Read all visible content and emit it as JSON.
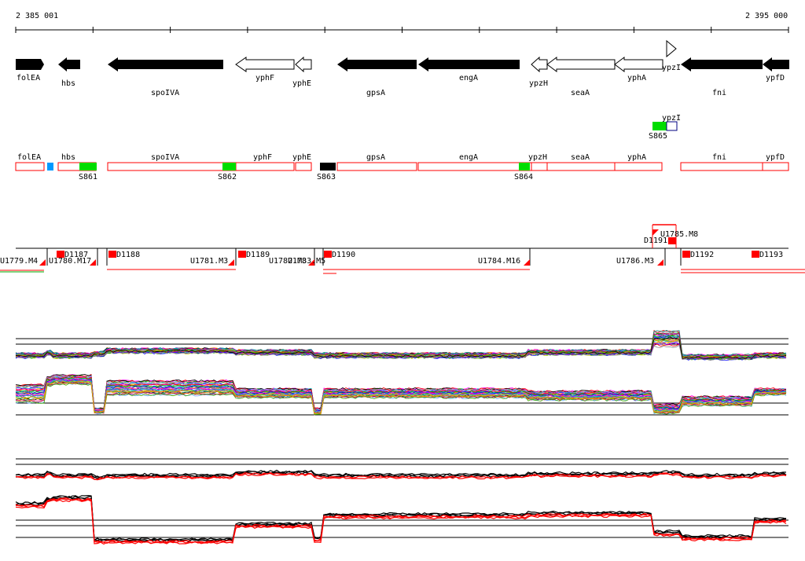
{
  "ruler": {
    "start_label": "2 385 001",
    "end_label": "2 395 000"
  },
  "colors": {
    "black": "#000000",
    "red": "#ff0000",
    "green": "#00dd00",
    "blue": "#0099ff",
    "navy": "#000080",
    "white": "#ffffff"
  },
  "genes": [
    {
      "label": "folEA",
      "strand": "-",
      "fill": "black"
    },
    {
      "label": "hbs",
      "strand": "-",
      "fill": "black"
    },
    {
      "label": "spoIVA",
      "strand": "-",
      "fill": "black"
    },
    {
      "label": "yphF",
      "strand": "-",
      "fill": "white"
    },
    {
      "label": "yphE",
      "strand": "-",
      "fill": "white"
    },
    {
      "label": "gpsA",
      "strand": "-",
      "fill": "black"
    },
    {
      "label": "engA",
      "strand": "-",
      "fill": "black"
    },
    {
      "label": "ypzH",
      "strand": "-",
      "fill": "white"
    },
    {
      "label": "seaA",
      "strand": "-",
      "fill": "white"
    },
    {
      "label": "yphA",
      "strand": "-",
      "fill": "white"
    },
    {
      "label": "ypzI",
      "strand": "+",
      "fill": "white"
    },
    {
      "label": "fni",
      "strand": "-",
      "fill": "black"
    },
    {
      "label": "ypfD",
      "strand": "-",
      "fill": "black"
    }
  ],
  "upper_feature": {
    "label": "ypzI",
    "site": "S865"
  },
  "gene_boxes": [
    "folEA",
    "hbs",
    "spoIVA",
    "yphF",
    "yphE",
    "gpsA",
    "engA",
    "ypzH",
    "seaA",
    "yphA",
    "fni",
    "ypfD"
  ],
  "sites": [
    "S861",
    "S862",
    "S863",
    "S864"
  ],
  "downstream": [
    "D1187",
    "D1188",
    "D1189",
    "D1190",
    "D1191",
    "D1192",
    "D1193"
  ],
  "upstream": [
    "U1779.M4",
    "U1780.M17",
    "U1781.M3",
    "U1782.M3",
    "U1783.M5",
    "U1784.M16",
    "U1785.M8",
    "U1786.M3"
  ]
}
